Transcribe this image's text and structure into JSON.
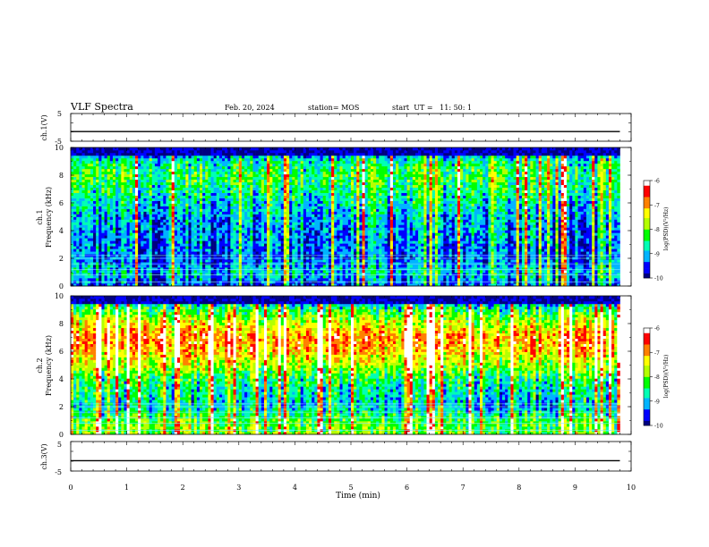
{
  "header": {
    "title": "VLF Spectra",
    "date": "Feb. 20, 2024",
    "station": "station= MOS",
    "start_ut": "start  UT =   11: 50: 1"
  },
  "chart_data": [
    {
      "type": "line",
      "name": "ch1-waveform",
      "ylabel": "ch.1(V)",
      "ylim": [
        -5,
        5
      ],
      "yticks": [
        "5",
        "-5"
      ],
      "x": [
        0,
        9.8
      ],
      "y": [
        -1.5,
        -1.5
      ],
      "xlim": [
        0,
        10
      ],
      "grid": false
    },
    {
      "type": "heatmap",
      "name": "ch1-spectrogram",
      "ylabel": "ch.1\nFrequency (kHz)",
      "ylim": [
        0,
        10
      ],
      "yticks": [
        "0",
        "2",
        "4",
        "6",
        "8",
        "10"
      ],
      "xlim": [
        0,
        10
      ],
      "data_end_x": 9.8,
      "colorbar": {
        "label": "log(PSD)(V²/Hz)",
        "range": [
          -10,
          -6
        ],
        "ticks": [
          "-6",
          "-7",
          "-8",
          "-9",
          "-10"
        ],
        "colors": [
          "#000080",
          "#0000ff",
          "#00b4ff",
          "#00ffb4",
          "#00ff00",
          "#b4ff00",
          "#ffff00",
          "#ff8000",
          "#ff0000",
          "#ffffff"
        ]
      },
      "intensity_profile_by_freq": [
        -9.6,
        -8.9,
        -9.4,
        -9.3,
        -9.2,
        -9.1,
        -8.8,
        -8.5,
        -8.3,
        -8.6,
        -10
      ],
      "horizontal_lines_khz": [
        0.3,
        0.8,
        1.2,
        1.6,
        2.0,
        2.2
      ],
      "grid": false
    },
    {
      "type": "heatmap",
      "name": "ch2-spectrogram",
      "ylabel": "ch.2\nFrequency (kHz)",
      "ylim": [
        0,
        10
      ],
      "yticks": [
        "0",
        "2",
        "4",
        "6",
        "8",
        "10"
      ],
      "xlim": [
        0,
        10
      ],
      "data_end_x": 9.8,
      "colorbar": {
        "label": "log(PSD)(V²/Hz)",
        "range": [
          -10,
          -6
        ],
        "ticks": [
          "-6",
          "-7",
          "-8",
          "-9",
          "-10"
        ],
        "colors": [
          "#000080",
          "#0000ff",
          "#00b4ff",
          "#00ffb4",
          "#00ff00",
          "#b4ff00",
          "#ffff00",
          "#ff8000",
          "#ff0000",
          "#ffffff"
        ]
      },
      "intensity_profile_by_freq": [
        -8.0,
        -8.2,
        -9.0,
        -8.8,
        -8.5,
        -7.8,
        -7.2,
        -6.9,
        -7.6,
        -8.4,
        -9.8
      ],
      "horizontal_lines_khz": [
        0.3,
        0.8,
        1.2,
        1.6,
        2.0,
        2.2
      ],
      "grid": false
    },
    {
      "type": "line",
      "name": "ch3-waveform",
      "ylabel": "ch.3(V)",
      "ylim": [
        -5,
        5
      ],
      "yticks": [
        "5",
        "-5"
      ],
      "x": [
        0,
        9.8
      ],
      "y": [
        -1.5,
        -1.5
      ],
      "xlim": [
        0,
        10
      ],
      "grid": false
    }
  ],
  "x_axis": {
    "label": "Time (min)",
    "ticks": [
      "0",
      "1",
      "2",
      "3",
      "4",
      "5",
      "6",
      "7",
      "8",
      "9",
      "10"
    ]
  }
}
